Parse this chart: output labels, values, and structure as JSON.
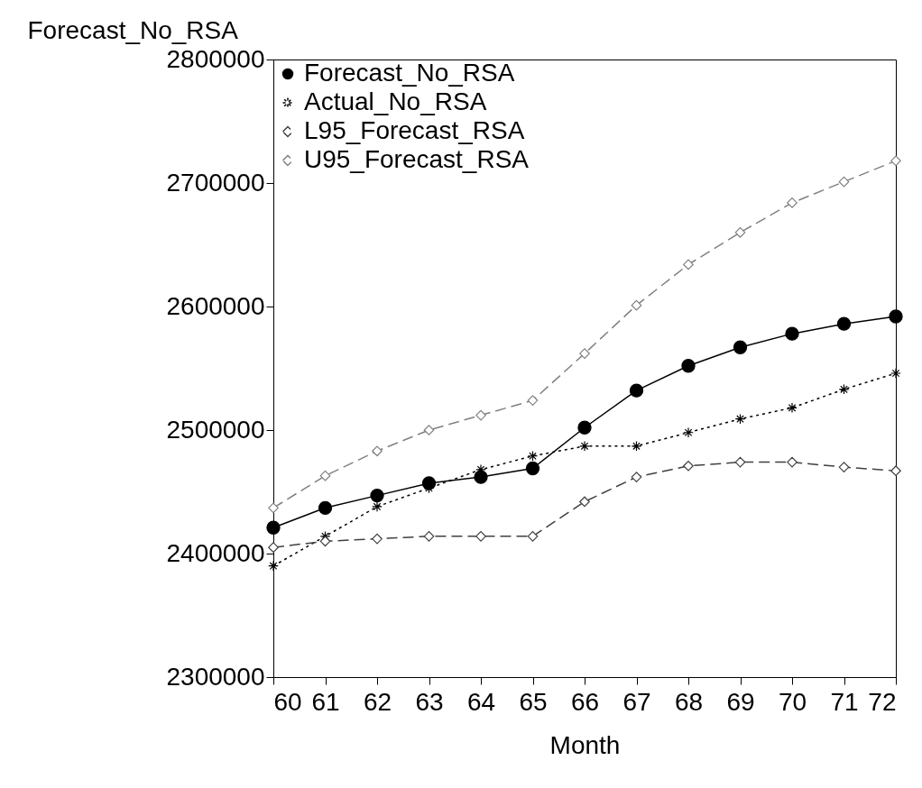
{
  "chart_data": {
    "type": "line",
    "ylabel": "Forecast_No_RSA",
    "xlabel": "Month",
    "x": [
      60,
      61,
      62,
      63,
      64,
      65,
      66,
      67,
      68,
      69,
      70,
      71,
      72
    ],
    "series": [
      {
        "name": "Forecast_No_RSA",
        "color": "#000000",
        "marker": "circle",
        "line_style": "solid",
        "values": [
          2421000,
          2437000,
          2447000,
          2457000,
          2462000,
          2469000,
          2502000,
          2532000,
          2552000,
          2567000,
          2578000,
          2586000,
          2592000
        ]
      },
      {
        "name": "Actual_No_RSA",
        "color": "#000000",
        "marker": "cross",
        "line_style": "dotted",
        "values": [
          2390000,
          2414000,
          2438000,
          2453000,
          2468000,
          2479000,
          2487000,
          2487000,
          2498000,
          2509000,
          2518000,
          2533000,
          2546000
        ]
      },
      {
        "name": "L95_Forecast_RSA",
        "color": "#404040",
        "marker": "diamond",
        "line_style": "dashed",
        "values": [
          2405000,
          2410000,
          2412000,
          2414000,
          2414000,
          2414000,
          2442000,
          2462000,
          2471000,
          2474000,
          2474000,
          2470000,
          2467000
        ]
      },
      {
        "name": "U95_Forecast_RSA",
        "color": "#808080",
        "marker": "diamond",
        "line_style": "dashed",
        "values": [
          2437000,
          2463000,
          2483000,
          2500000,
          2512000,
          2524000,
          2562000,
          2601000,
          2634000,
          2660000,
          2684000,
          2701000,
          2718000
        ]
      }
    ],
    "xlim": [
      60,
      72
    ],
    "xticks": [
      60,
      61,
      62,
      63,
      64,
      65,
      66,
      67,
      68,
      69,
      70,
      71,
      72
    ],
    "ylim": [
      2300000,
      2800000
    ],
    "yticks": [
      2300000,
      2400000,
      2500000,
      2600000,
      2700000,
      2800000
    ],
    "legend": "top left",
    "grid": false
  }
}
